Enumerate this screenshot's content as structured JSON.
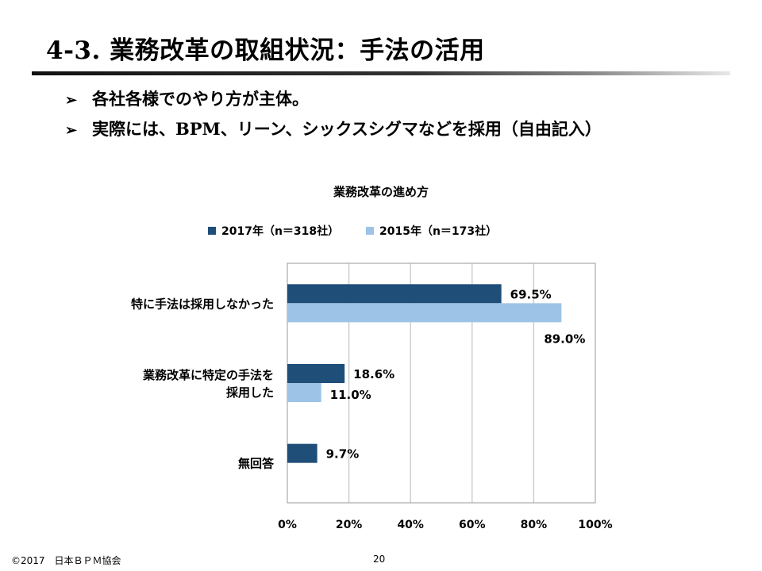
{
  "slide": {
    "title": "4-3. 業務改革の取組状況：手法の活用",
    "bullets": [
      {
        "marker": "➢",
        "text": "各社各様でのやり方が主体。"
      },
      {
        "marker": "➢",
        "text": "実際には、BPM、リーン、シックスシグマなどを採用（自由記入）"
      }
    ],
    "footer": "©2017　日本ＢＰＭ協会",
    "page_number": "20"
  },
  "chart_data": {
    "type": "bar",
    "orientation": "horizontal",
    "title": "業務改革の進め方",
    "categories": [
      [
        "特に手法は採用しなかった"
      ],
      [
        "業務改革に特定の手法を",
        "採用した"
      ],
      [
        "無回答"
      ]
    ],
    "series": [
      {
        "name": "2017年（n＝318社）",
        "color": "#1f4e79",
        "values": [
          69.5,
          18.6,
          9.7
        ],
        "labels": [
          "69.5%",
          "18.6%",
          "9.7%"
        ]
      },
      {
        "name": "2015年（n＝173社）",
        "color": "#9dc3e6",
        "values": [
          89.0,
          11.0,
          null
        ],
        "labels": [
          "89.0%",
          "11.0%",
          ""
        ]
      }
    ],
    "xlim": [
      0,
      100
    ],
    "xticks": [
      "0%",
      "20%",
      "40%",
      "60%",
      "80%",
      "100%"
    ],
    "grid": true,
    "legend_position": "top"
  }
}
